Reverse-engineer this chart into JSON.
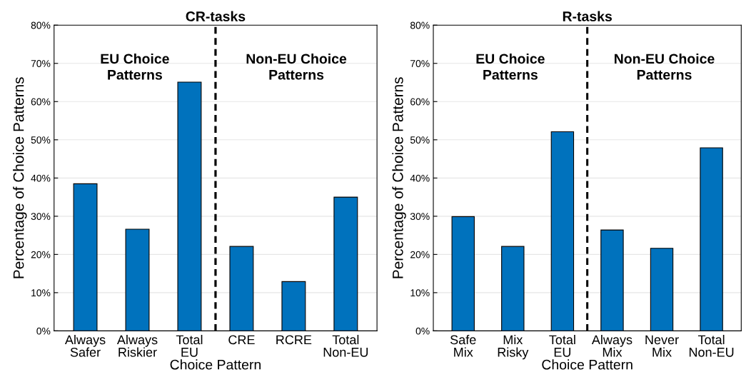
{
  "chart_data": [
    {
      "type": "bar",
      "title": "CR-tasks",
      "xlabel": "Choice Pattern",
      "ylabel": "Percentage of Choice Patterns",
      "categories": [
        "Always\nSafer",
        "Always\nRiskier",
        "Total\nEU",
        "CRE",
        "RCRE",
        "Total\nNon-EU"
      ],
      "values": [
        38.5,
        26.6,
        65.1,
        22.1,
        12.9,
        35.0
      ],
      "color": "#0072bd",
      "ylim": [
        0,
        80
      ],
      "yticks": [
        {
          "value": 0,
          "label": "0%"
        },
        {
          "value": 10,
          "label": "10%"
        },
        {
          "value": 20,
          "label": "20%"
        },
        {
          "value": 30,
          "label": "30%"
        },
        {
          "value": 40,
          "label": "40%"
        },
        {
          "value": 50,
          "label": "50%"
        },
        {
          "value": 60,
          "label": "60%"
        },
        {
          "value": 70,
          "label": "70%"
        },
        {
          "value": 80,
          "label": "80%"
        }
      ],
      "grid": "y",
      "annotations": [
        "EU Choice\nPatterns",
        "Non-EU Choice\nPatterns"
      ]
    },
    {
      "type": "bar",
      "title": "R-tasks",
      "xlabel": "Choice Pattern",
      "ylabel": "Percentage of Choice Patterns",
      "categories": [
        "Safe\nMix",
        "Mix\nRisky",
        "Total\nEU",
        "Always\nMix",
        "Never\nMix",
        "Total\nNon-EU"
      ],
      "values": [
        29.9,
        22.1,
        52.1,
        26.4,
        21.6,
        47.9
      ],
      "color": "#0072bd",
      "ylim": [
        0,
        80
      ],
      "yticks": [
        {
          "value": 0,
          "label": "0%"
        },
        {
          "value": 10,
          "label": "10%"
        },
        {
          "value": 20,
          "label": "20%"
        },
        {
          "value": 30,
          "label": "30%"
        },
        {
          "value": 40,
          "label": "40%"
        },
        {
          "value": 50,
          "label": "50%"
        },
        {
          "value": 60,
          "label": "60%"
        },
        {
          "value": 70,
          "label": "70%"
        },
        {
          "value": 80,
          "label": "80%"
        }
      ],
      "grid": "y",
      "annotations": [
        "EU Choice\nPatterns",
        "Non-EU Choice\nPatterns"
      ]
    }
  ]
}
